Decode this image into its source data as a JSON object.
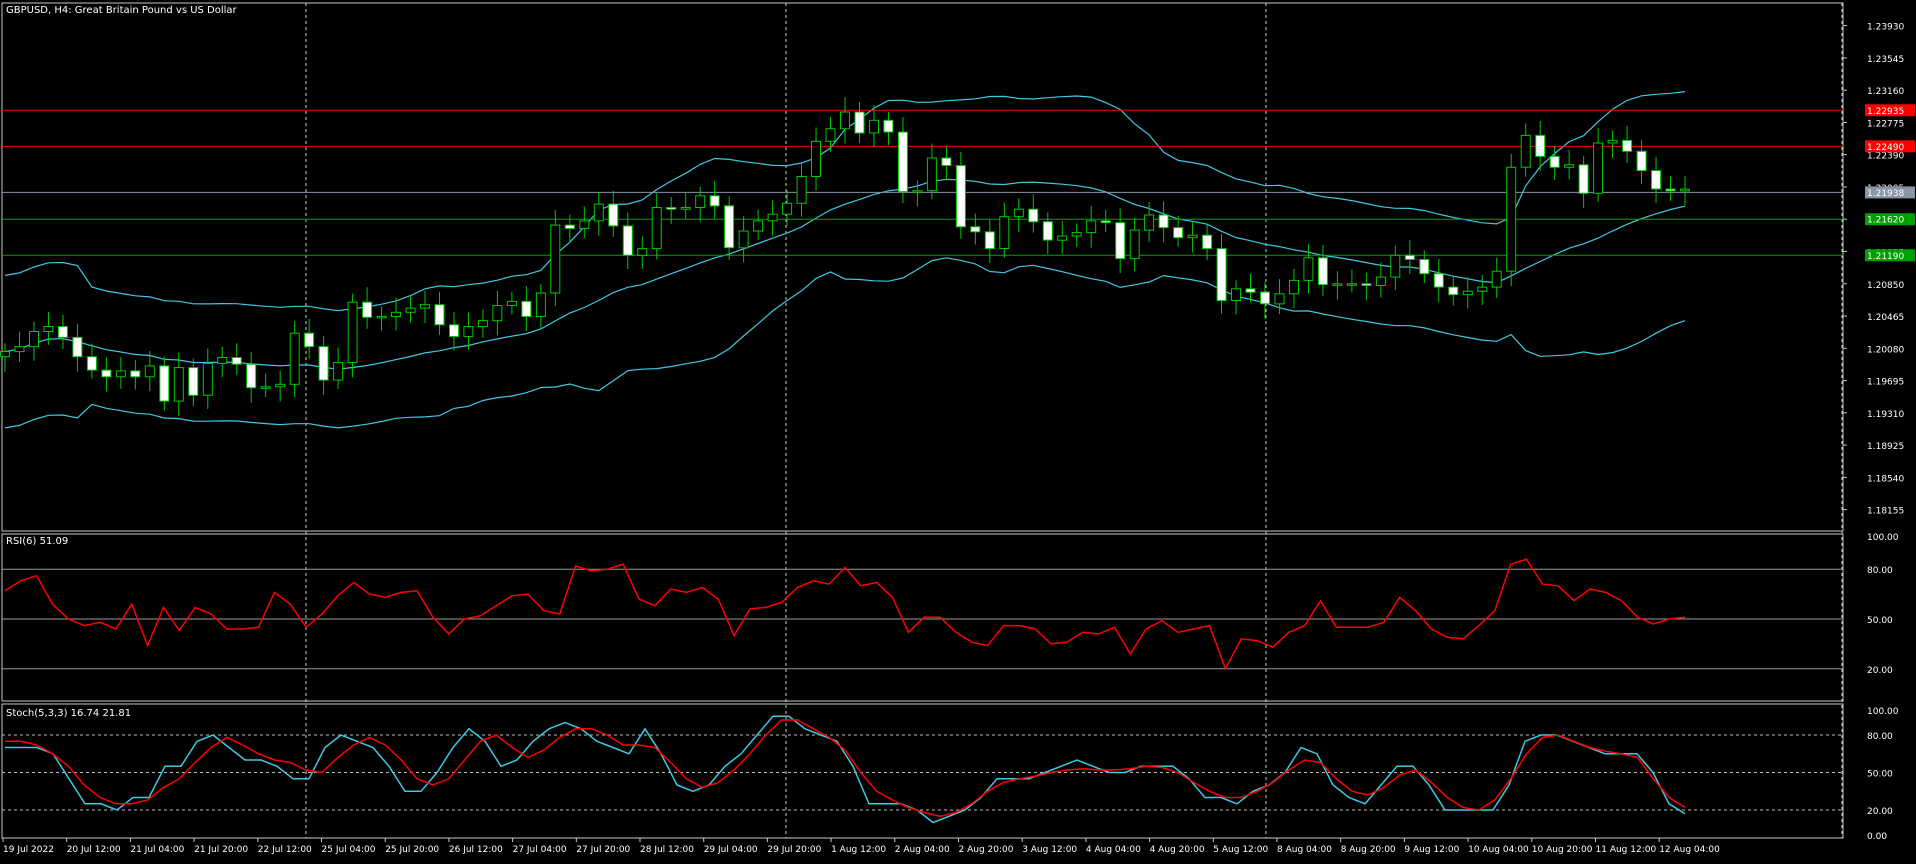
{
  "chart_title": "GBPUSD, H4:  Great Britain Pound vs US Dollar",
  "colors": {
    "background": "#000000",
    "frame": "#c8c8c8",
    "bull_body": "#000000",
    "bear_body": "#ffffff",
    "wick": "#00c800",
    "bollinger": "#40c8e0",
    "rsi": "#ff0000",
    "stoch_main": "#40c8e0",
    "stoch_signal": "#ff0000",
    "level_red": "#ff0000",
    "level_green": "#00a000",
    "level_current": "#8896a8",
    "text": "#ffffff"
  },
  "chart_data": [
    {
      "type": "candlestick",
      "title": "GBPUSD, H4:  Great Britain Pound vs US Dollar",
      "ylim": [
        1.179,
        1.242
      ],
      "y_ticks": [
        "1.23930",
        "1.23545",
        "1.23160",
        "1.22775",
        "1.22390",
        "1.22005",
        "1.21620",
        "1.21235",
        "1.20850",
        "1.20465",
        "1.20080",
        "1.19695",
        "1.19310",
        "1.18925",
        "1.18540",
        "1.18155"
      ],
      "x_labels": [
        "19 Jul 2022",
        "20 Jul 12:00",
        "21 Jul 04:00",
        "21 Jul 20:00",
        "22 Jul 12:00",
        "25 Jul 04:00",
        "25 Jul 20:00",
        "26 Jul 12:00",
        "27 Jul 04:00",
        "27 Jul 20:00",
        "28 Jul 12:00",
        "29 Jul 04:00",
        "29 Jul 20:00",
        "1 Aug 12:00",
        "2 Aug 04:00",
        "2 Aug 20:00",
        "3 Aug 12:00",
        "4 Aug 04:00",
        "4 Aug 20:00",
        "5 Aug 12:00",
        "8 Aug 04:00",
        "8 Aug 20:00",
        "9 Aug 12:00",
        "10 Aug 04:00",
        "10 Aug 20:00",
        "11 Aug 12:00",
        "12 Aug 04:00"
      ],
      "close_series": [
        1.2004,
        1.201,
        1.2028,
        1.2034,
        1.2021,
        1.1998,
        1.1982,
        1.1974,
        1.1981,
        1.1974,
        1.1987,
        1.1945,
        1.1985,
        1.1952,
        1.199,
        1.1997,
        1.1989,
        1.1961,
        1.1962,
        1.1965,
        1.2026,
        1.201,
        1.197,
        1.1991,
        1.2063,
        1.2045,
        1.2046,
        1.2051,
        1.2056,
        1.206,
        1.2036,
        1.2022,
        1.2034,
        1.2041,
        1.2059,
        1.2064,
        1.2046,
        1.2074,
        1.2155,
        1.2151,
        1.216,
        1.218,
        1.2154,
        1.2119,
        1.2127,
        1.2176,
        1.2174,
        1.2176,
        1.219,
        1.2178,
        1.2128,
        1.2148,
        1.216,
        1.2168,
        1.2181,
        1.2213,
        1.2255,
        1.227,
        1.229,
        1.2265,
        1.228,
        1.2266,
        1.2195,
        1.2196,
        1.2235,
        1.2226,
        1.2153,
        1.2147,
        1.2127,
        1.2165,
        1.2174,
        1.2159,
        1.2137,
        1.2142,
        1.2146,
        1.216,
        1.2158,
        1.2115,
        1.2149,
        1.2167,
        1.2152,
        1.214,
        1.2143,
        1.2127,
        1.2065,
        1.2079,
        1.2075,
        1.2061,
        1.2073,
        1.2089,
        1.2116,
        1.2084,
        1.2085,
        1.2085,
        1.2083,
        1.2093,
        1.2119,
        1.2114,
        1.2097,
        1.2081,
        1.2072,
        1.2076,
        1.2081,
        1.21,
        1.2224,
        1.2262,
        1.2237,
        1.2224,
        1.2227,
        1.2193,
        1.2253,
        1.2256,
        1.2243,
        1.222,
        1.2198,
        1.2196,
        1.2198
      ],
      "levels": {
        "red": [
          1.2292,
          1.2249
        ],
        "green": [
          1.2162,
          1.2119
        ],
        "current": 1.2194
      },
      "level_labels": [
        "1.22935",
        "1.22490",
        "1.21938",
        "1.21620",
        "1.21190"
      ],
      "indicator": "Bollinger Bands"
    },
    {
      "type": "line",
      "title": "RSI(6) 51.09",
      "ylim": [
        0,
        100
      ],
      "y_ticks": [
        "100.00",
        "80.00",
        "50.00",
        "20.00"
      ],
      "levels": [
        80,
        50,
        20
      ],
      "values": [
        67,
        73,
        76,
        59,
        50,
        46,
        48,
        44,
        59,
        34,
        57,
        43,
        57,
        53,
        44,
        44,
        45,
        66,
        59,
        45,
        53,
        64,
        72,
        65,
        63,
        66,
        67,
        51,
        41,
        50,
        52,
        58,
        64,
        65,
        55,
        53,
        82,
        79,
        80,
        83,
        62,
        58,
        68,
        66,
        69,
        62,
        40,
        56,
        57,
        60,
        69,
        73,
        71,
        81,
        70,
        72,
        63,
        42,
        51,
        51,
        42,
        36,
        34,
        46,
        46,
        44,
        35,
        36,
        42,
        41,
        45,
        29,
        44,
        49,
        42,
        44,
        46,
        20,
        38,
        37,
        33,
        42,
        46,
        61,
        45,
        45,
        45,
        48,
        63,
        55,
        44,
        39,
        38,
        46,
        55,
        83,
        86,
        71,
        70,
        61,
        68,
        66,
        61,
        51,
        47,
        50,
        51
      ]
    },
    {
      "type": "line",
      "title": "Stoch(5,3,3) 16.74 21.81",
      "ylim": [
        0,
        100
      ],
      "y_ticks": [
        "100.00",
        "80.00",
        "50.00",
        "20.00",
        "0.00"
      ],
      "levels": [
        80,
        50,
        20
      ],
      "series": [
        {
          "values": [
            70,
            70,
            70,
            65,
            45,
            25,
            25,
            20,
            30,
            30,
            55,
            55,
            75,
            80,
            70,
            60,
            60,
            55,
            45,
            45,
            70,
            80,
            75,
            70,
            55,
            35,
            35,
            50,
            70,
            85,
            75,
            55,
            60,
            75,
            85,
            90,
            85,
            75,
            70,
            65,
            85,
            65,
            40,
            35,
            40,
            55,
            65,
            80,
            95,
            95,
            85,
            80,
            75,
            55,
            25,
            25,
            25,
            20,
            10,
            15,
            20,
            30,
            45,
            45,
            45,
            50,
            55,
            60,
            55,
            50,
            50,
            55,
            55,
            55,
            45,
            30,
            30,
            25,
            35,
            40,
            50,
            70,
            65,
            40,
            30,
            25,
            40,
            55,
            55,
            40,
            20,
            20,
            20,
            20,
            40,
            75,
            80,
            80,
            75,
            70,
            65,
            65,
            65,
            50,
            25,
            17
          ]
        },
        {
          "values": [
            75,
            75,
            72,
            65,
            55,
            40,
            30,
            25,
            25,
            28,
            38,
            45,
            58,
            70,
            78,
            72,
            65,
            60,
            58,
            52,
            50,
            62,
            72,
            78,
            72,
            60,
            45,
            40,
            45,
            60,
            75,
            80,
            70,
            62,
            68,
            78,
            85,
            85,
            80,
            72,
            72,
            70,
            58,
            45,
            38,
            42,
            52,
            65,
            80,
            92,
            92,
            85,
            78,
            68,
            50,
            35,
            28,
            22,
            18,
            15,
            18,
            25,
            35,
            42,
            45,
            47,
            50,
            52,
            53,
            52,
            52,
            53,
            55,
            54,
            50,
            42,
            35,
            30,
            30,
            35,
            42,
            52,
            60,
            58,
            45,
            35,
            32,
            38,
            48,
            52,
            42,
            30,
            22,
            20,
            28,
            45,
            65,
            78,
            80,
            75,
            70,
            67,
            65,
            62,
            45,
            30,
            22
          ]
        }
      ]
    }
  ]
}
